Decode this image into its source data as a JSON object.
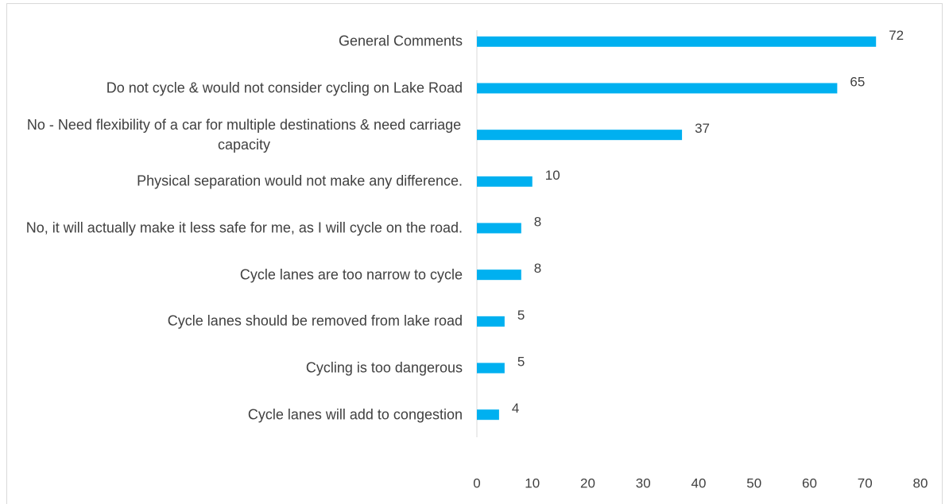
{
  "chart_data": {
    "type": "bar",
    "orientation": "horizontal",
    "categories": [
      "General Comments",
      "Do not cycle & would not consider cycling on Lake Road",
      "No - Need flexibility of a car for multiple destinations & need carriage capacity",
      "Physical separation would not  make any difference.",
      "No, it will actually make it less safe for me, as I will cycle on the road.",
      "Cycle lanes are too narrow to cycle",
      "Cycle lanes should be removed from lake road",
      "Cycling is too dangerous",
      "Cycle lanes will add to congestion"
    ],
    "values": [
      72,
      65,
      37,
      10,
      8,
      8,
      5,
      5,
      4
    ],
    "color": "#00b0f0",
    "xlim": [
      0,
      80
    ],
    "xticks": [
      0,
      10,
      20,
      30,
      40,
      50,
      60,
      70,
      80
    ],
    "grid": false
  }
}
